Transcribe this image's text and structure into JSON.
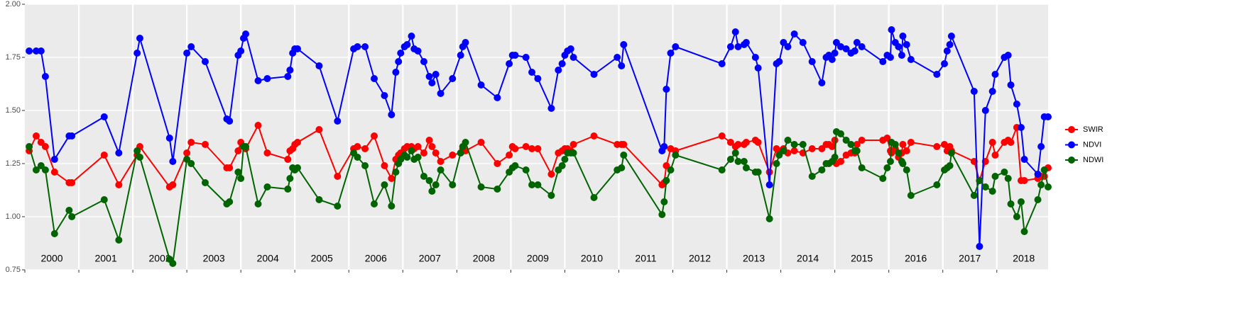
{
  "chart_data": {
    "type": "line",
    "x": [
      2000.08,
      2000.21,
      2000.3,
      2000.38,
      2000.55,
      2000.82,
      2000.87,
      2001.47,
      2001.74,
      2002.08,
      2002.13,
      2002.68,
      2002.74,
      2003.0,
      2003.08,
      2003.34,
      2003.74,
      2003.79,
      2003.95,
      2004.0,
      2004.05,
      2004.09,
      2004.32,
      2004.49,
      2004.87,
      2004.91,
      2004.96,
      2005.0,
      2005.05,
      2005.45,
      2005.79,
      2006.09,
      2006.16,
      2006.3,
      2006.47,
      2006.66,
      2006.79,
      2006.87,
      2006.92,
      2006.96,
      2007.03,
      2007.08,
      2007.16,
      2007.21,
      2007.28,
      2007.39,
      2007.49,
      2007.54,
      2007.61,
      2007.7,
      2007.92,
      2008.07,
      2008.11,
      2008.16,
      2008.45,
      2008.75,
      2008.97,
      2009.03,
      2009.08,
      2009.28,
      2009.39,
      2009.5,
      2009.75,
      2009.88,
      2009.95,
      2010.0,
      2010.05,
      2010.11,
      2010.16,
      2010.54,
      2010.97,
      2011.05,
      2011.09,
      2011.8,
      2011.84,
      2011.88,
      2011.96,
      2012.05,
      2012.91,
      2013.07,
      2013.16,
      2013.21,
      2013.32,
      2013.36,
      2013.53,
      2013.58,
      2013.79,
      2013.92,
      2013.97,
      2014.05,
      2014.13,
      2014.25,
      2014.41,
      2014.58,
      2014.76,
      2014.84,
      2014.89,
      2014.95,
      2015.0,
      2015.03,
      2015.11,
      2015.21,
      2015.3,
      2015.37,
      2015.41,
      2015.5,
      2015.89,
      2015.97,
      2016.03,
      2016.05,
      2016.12,
      2016.18,
      2016.24,
      2016.26,
      2016.33,
      2016.41,
      2016.89,
      2017.03,
      2017.08,
      2017.13,
      2017.16,
      2017.58,
      2017.68,
      2017.79,
      2017.92,
      2017.97,
      2018.14,
      2018.21,
      2018.26,
      2018.37,
      2018.45,
      2018.51,
      2018.76,
      2018.82,
      2018.88,
      2018.95
    ],
    "series": [
      {
        "name": "SWIR",
        "color": "#ff0000",
        "values": [
          1.31,
          1.38,
          1.35,
          1.33,
          1.21,
          1.16,
          1.16,
          1.29,
          1.15,
          1.29,
          1.33,
          1.14,
          1.15,
          1.3,
          1.35,
          1.34,
          1.23,
          1.23,
          1.31,
          1.35,
          1.33,
          1.32,
          1.43,
          1.3,
          1.27,
          1.31,
          1.32,
          1.34,
          1.35,
          1.41,
          1.19,
          1.32,
          1.33,
          1.32,
          1.38,
          1.24,
          1.18,
          1.27,
          1.29,
          1.3,
          1.32,
          1.33,
          1.33,
          1.32,
          1.33,
          1.3,
          1.36,
          1.33,
          1.3,
          1.26,
          1.29,
          1.3,
          1.32,
          1.31,
          1.35,
          1.25,
          1.29,
          1.33,
          1.32,
          1.33,
          1.32,
          1.32,
          1.2,
          1.3,
          1.31,
          1.32,
          1.32,
          1.31,
          1.34,
          1.38,
          1.34,
          1.34,
          1.34,
          1.15,
          1.16,
          1.24,
          1.32,
          1.31,
          1.38,
          1.35,
          1.33,
          1.34,
          1.34,
          1.35,
          1.36,
          1.35,
          1.21,
          1.32,
          1.31,
          1.32,
          1.3,
          1.31,
          1.3,
          1.32,
          1.32,
          1.34,
          1.34,
          1.33,
          1.36,
          1.25,
          1.26,
          1.29,
          1.3,
          1.3,
          1.34,
          1.36,
          1.36,
          1.37,
          1.31,
          1.3,
          1.32,
          1.28,
          1.3,
          1.34,
          1.31,
          1.35,
          1.33,
          1.34,
          1.31,
          1.33,
          1.31,
          1.26,
          1.17,
          1.26,
          1.35,
          1.29,
          1.35,
          1.36,
          1.35,
          1.42,
          1.17,
          1.17,
          1.18,
          1.19,
          1.19,
          1.23
        ]
      },
      {
        "name": "NDVI",
        "color": "#0000ff",
        "values": [
          1.78,
          1.78,
          1.78,
          1.66,
          1.27,
          1.38,
          1.38,
          1.47,
          1.3,
          1.77,
          1.84,
          1.37,
          1.26,
          1.77,
          1.8,
          1.73,
          1.46,
          1.45,
          1.76,
          1.78,
          1.84,
          1.86,
          1.64,
          1.65,
          1.66,
          1.69,
          1.77,
          1.79,
          1.79,
          1.71,
          1.45,
          1.79,
          1.8,
          1.8,
          1.65,
          1.57,
          1.48,
          1.68,
          1.73,
          1.77,
          1.8,
          1.81,
          1.85,
          1.79,
          1.78,
          1.73,
          1.66,
          1.63,
          1.67,
          1.58,
          1.65,
          1.76,
          1.8,
          1.82,
          1.62,
          1.56,
          1.72,
          1.76,
          1.76,
          1.75,
          1.68,
          1.65,
          1.51,
          1.69,
          1.72,
          1.76,
          1.78,
          1.79,
          1.75,
          1.67,
          1.75,
          1.71,
          1.81,
          1.31,
          1.33,
          1.6,
          1.77,
          1.8,
          1.72,
          1.8,
          1.87,
          1.8,
          1.81,
          1.82,
          1.75,
          1.7,
          1.15,
          1.72,
          1.73,
          1.82,
          1.8,
          1.86,
          1.82,
          1.73,
          1.63,
          1.75,
          1.76,
          1.74,
          1.77,
          1.82,
          1.8,
          1.79,
          1.77,
          1.78,
          1.82,
          1.8,
          1.73,
          1.76,
          1.75,
          1.88,
          1.82,
          1.8,
          1.76,
          1.85,
          1.81,
          1.74,
          1.67,
          1.72,
          1.78,
          1.81,
          1.85,
          1.59,
          0.86,
          1.5,
          1.59,
          1.67,
          1.75,
          1.76,
          1.62,
          1.53,
          1.42,
          1.27,
          1.2,
          1.33,
          1.47,
          1.47
        ]
      },
      {
        "name": "NDWI",
        "color": "#006400",
        "values": [
          1.33,
          1.22,
          1.24,
          1.22,
          0.92,
          1.03,
          1.0,
          1.08,
          0.89,
          1.31,
          1.28,
          0.8,
          0.78,
          1.27,
          1.25,
          1.16,
          1.06,
          1.07,
          1.21,
          1.18,
          1.33,
          1.33,
          1.06,
          1.14,
          1.13,
          1.18,
          1.23,
          1.22,
          1.23,
          1.08,
          1.05,
          1.3,
          1.28,
          1.24,
          1.06,
          1.15,
          1.05,
          1.21,
          1.25,
          1.27,
          1.29,
          1.28,
          1.31,
          1.27,
          1.28,
          1.19,
          1.17,
          1.12,
          1.15,
          1.22,
          1.15,
          1.3,
          1.33,
          1.35,
          1.14,
          1.13,
          1.21,
          1.23,
          1.24,
          1.22,
          1.15,
          1.15,
          1.1,
          1.22,
          1.24,
          1.27,
          1.3,
          1.3,
          1.3,
          1.09,
          1.22,
          1.23,
          1.29,
          1.01,
          1.07,
          1.17,
          1.22,
          1.29,
          1.22,
          1.27,
          1.3,
          1.26,
          1.26,
          1.23,
          1.21,
          1.21,
          0.99,
          1.25,
          1.29,
          1.31,
          1.36,
          1.34,
          1.34,
          1.19,
          1.22,
          1.25,
          1.25,
          1.26,
          1.28,
          1.4,
          1.39,
          1.36,
          1.34,
          1.31,
          1.31,
          1.23,
          1.18,
          1.23,
          1.26,
          1.35,
          1.34,
          1.3,
          1.26,
          1.25,
          1.22,
          1.1,
          1.15,
          1.22,
          1.23,
          1.24,
          1.3,
          1.1,
          1.17,
          1.14,
          1.12,
          1.19,
          1.21,
          1.18,
          1.06,
          1.0,
          1.07,
          0.93,
          1.08,
          1.15,
          1.22,
          1.14
        ]
      }
    ],
    "xlim": [
      2000,
      2018.95
    ],
    "xticks": [
      2000,
      2001,
      2002,
      2003,
      2004,
      2005,
      2006,
      2007,
      2008,
      2009,
      2010,
      2011,
      2012,
      2013,
      2014,
      2015,
      2016,
      2017,
      2018
    ],
    "ylim": [
      0.75,
      2.0
    ],
    "yticks": [
      {
        "value": 0.75,
        "label": "0.75"
      },
      {
        "value": 1.0,
        "label": "1.00"
      },
      {
        "value": 1.25,
        "label": "1.25"
      },
      {
        "value": 1.5,
        "label": "1.50"
      },
      {
        "value": 1.75,
        "label": "1.75"
      },
      {
        "value": 2.0,
        "label": "2.00"
      }
    ],
    "grid": true
  }
}
